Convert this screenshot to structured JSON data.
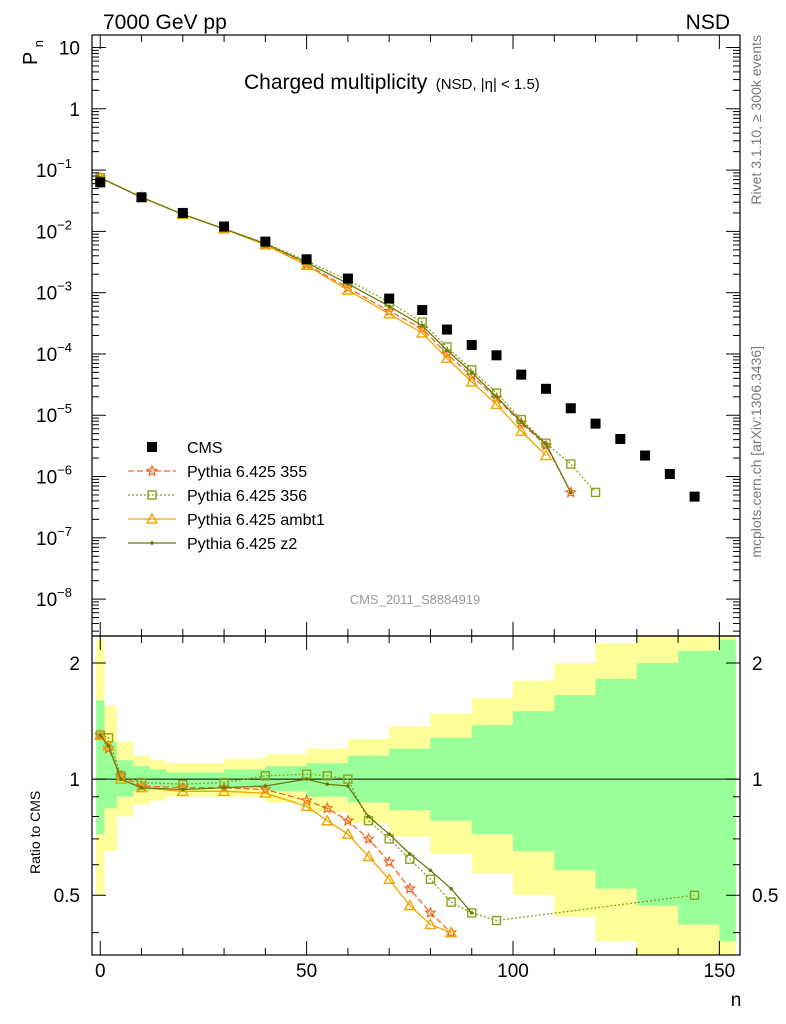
{
  "header": {
    "energy_label": "7000 GeV pp",
    "process_label": "NSD",
    "plot_title_main": "Charged multiplicity",
    "plot_title_sub": "(NSD, |η| < 1.5)",
    "analysis_id": "CMS_2011_S8884919",
    "side_top": "Rivet 3.1.10, ≥ 300k events",
    "side_bottom": "mcplots.cern.ch [arXiv:1306.3436]"
  },
  "axes": {
    "y_label_main": "P",
    "y_label_main_sub": "n",
    "y_label_ratio": "Ratio to CMS",
    "x_label": "n",
    "main_y_ticks": [
      {
        "value": 10,
        "base": "10",
        "exp": ""
      },
      {
        "value": 1,
        "base": "1",
        "exp": ""
      },
      {
        "value": 0.1,
        "base": "10",
        "exp": "−1"
      },
      {
        "value": 0.01,
        "base": "10",
        "exp": "−2"
      },
      {
        "value": 0.001,
        "base": "10",
        "exp": "−3"
      },
      {
        "value": 0.0001,
        "base": "10",
        "exp": "−4"
      },
      {
        "value": 1e-05,
        "base": "10",
        "exp": "−5"
      },
      {
        "value": 1e-06,
        "base": "10",
        "exp": "−6"
      },
      {
        "value": 1e-07,
        "base": "10",
        "exp": "−7"
      },
      {
        "value": 1e-08,
        "base": "10",
        "exp": "−8"
      }
    ],
    "ratio_y_ticks": [
      "2",
      "1",
      "0.5"
    ],
    "x_ticks": [
      "0",
      "50",
      "100",
      "150"
    ]
  },
  "legend": {
    "position": "lower-left",
    "entries": [
      {
        "label": "CMS",
        "color": "#000000",
        "marker": "square"
      },
      {
        "label": "Pythia 6.425 355",
        "color": "#f26522",
        "marker": "star"
      },
      {
        "label": "Pythia 6.425 356",
        "color": "#8aa31a",
        "marker": "open-square"
      },
      {
        "label": "Pythia 6.425 ambt1",
        "color": "#f0a500",
        "marker": "open-triangle"
      },
      {
        "label": "Pythia 6.425 z2",
        "color": "#6b7a0c",
        "marker": "dot"
      }
    ]
  },
  "chart_data": [
    {
      "type": "scatter",
      "title": "Charged multiplicity (NSD, |η| < 1.5)",
      "xlabel": "n",
      "ylabel": "P_n",
      "xlim": [
        -2,
        155
      ],
      "ylim": [
        2.5e-09,
        16
      ],
      "log_y": true,
      "grid": false,
      "x": [
        0,
        10,
        20,
        30,
        40,
        50,
        60,
        70,
        78,
        84,
        90,
        96,
        102,
        108,
        114,
        120,
        126,
        132,
        138,
        144,
        150
      ],
      "series": [
        {
          "name": "CMS",
          "values": [
            0.063,
            0.036,
            0.02,
            0.012,
            0.0068,
            0.0035,
            0.0017,
            0.0008,
            0.00052,
            0.00025,
            0.00014,
            9.5e-05,
            4.6e-05,
            2.7e-05,
            1.3e-05,
            7.3e-06,
            4.1e-06,
            2.2e-06,
            1.1e-06,
            4.7e-07
          ]
        },
        {
          "name": "Pythia 6.425 355",
          "values": [
            0.075,
            0.036,
            0.019,
            0.011,
            0.0061,
            0.0029,
            0.0012,
            0.0005,
            0.00026,
            0.0001,
            4.4e-05,
            1.9e-05,
            7.5e-06,
            3.2e-06,
            5.5e-07
          ]
        },
        {
          "name": "Pythia 6.425 356",
          "values": [
            0.075,
            0.036,
            0.019,
            0.011,
            0.0064,
            0.0033,
            0.0016,
            0.0007,
            0.00033,
            0.00013,
            5.5e-05,
            2.3e-05,
            8.5e-06,
            3.5e-06,
            1.6e-06,
            5.5e-07
          ]
        },
        {
          "name": "Pythia 6.425 ambt1",
          "values": [
            0.075,
            0.036,
            0.019,
            0.011,
            0.006,
            0.0028,
            0.0011,
            0.00045,
            0.00022,
            8.5e-05,
            3.5e-05,
            1.5e-05,
            5.5e-06,
            2.2e-06
          ]
        },
        {
          "name": "Pythia 6.425 z2",
          "values": [
            0.075,
            0.036,
            0.019,
            0.011,
            0.0063,
            0.0031,
            0.0014,
            0.0006,
            0.00029,
            0.000115,
            5e-05,
            2e-05,
            7.8e-06,
            3.4e-06,
            5.5e-07
          ]
        }
      ]
    },
    {
      "type": "scatter",
      "title": "",
      "xlabel": "n",
      "ylabel": "Ratio to CMS",
      "xlim": [
        -2,
        155
      ],
      "ylim": [
        0.35,
        2.35
      ],
      "log_y": true,
      "grid": false,
      "reference_line": 1,
      "band_edges": [
        -1,
        1,
        4,
        8,
        12,
        16,
        20,
        30,
        40,
        50,
        60,
        70,
        80,
        90,
        100,
        110,
        120,
        130,
        140,
        150,
        154
      ],
      "band_inner_low": [
        0.72,
        0.84,
        0.9,
        0.93,
        0.94,
        0.95,
        0.95,
        0.95,
        0.93,
        0.9,
        0.87,
        0.83,
        0.78,
        0.72,
        0.65,
        0.58,
        0.52,
        0.47,
        0.42,
        0.38
      ],
      "band_inner_high": [
        1.6,
        1.25,
        1.12,
        1.08,
        1.06,
        1.04,
        1.04,
        1.06,
        1.08,
        1.1,
        1.15,
        1.2,
        1.28,
        1.38,
        1.5,
        1.65,
        1.82,
        2.0,
        2.15,
        2.3
      ],
      "band_outer_low": [
        0.5,
        0.65,
        0.8,
        0.86,
        0.88,
        0.9,
        0.9,
        0.9,
        0.87,
        0.82,
        0.77,
        0.71,
        0.64,
        0.57,
        0.5,
        0.44,
        0.38,
        0.35,
        0.35,
        0.35
      ],
      "band_outer_high": [
        2.3,
        1.55,
        1.25,
        1.15,
        1.12,
        1.1,
        1.1,
        1.13,
        1.16,
        1.2,
        1.27,
        1.37,
        1.48,
        1.62,
        1.8,
        2.0,
        2.25,
        2.35,
        2.35,
        2.35
      ],
      "x": [
        0,
        2,
        5,
        10,
        20,
        30,
        40,
        50,
        55,
        60,
        65,
        70,
        75,
        80,
        85,
        90,
        96,
        144
      ],
      "series": [
        {
          "name": "Pythia 6.425 355",
          "values": [
            1.3,
            1.2,
            1.02,
            0.96,
            0.95,
            0.95,
            0.94,
            0.88,
            0.84,
            0.78,
            0.7,
            0.61,
            0.52,
            0.45,
            0.4
          ]
        },
        {
          "name": "Pythia 6.425 356",
          "values": [
            1.3,
            1.28,
            1.02,
            0.98,
            0.97,
            0.98,
            1.02,
            1.03,
            1.02,
            1.0,
            0.78,
            0.7,
            0.62,
            0.55,
            0.48,
            0.45,
            0.43,
            0.5
          ]
        },
        {
          "name": "Pythia 6.425 ambt1",
          "values": [
            1.3,
            1.22,
            1.0,
            0.95,
            0.93,
            0.93,
            0.92,
            0.85,
            0.78,
            0.72,
            0.63,
            0.55,
            0.47,
            0.42,
            0.4
          ]
        },
        {
          "name": "Pythia 6.425 z2",
          "values": [
            1.3,
            1.22,
            1.0,
            0.95,
            0.94,
            0.95,
            0.96,
            1.0,
            0.97,
            0.96,
            0.8,
            0.72,
            0.64,
            0.58,
            0.52,
            0.45
          ]
        }
      ]
    }
  ]
}
